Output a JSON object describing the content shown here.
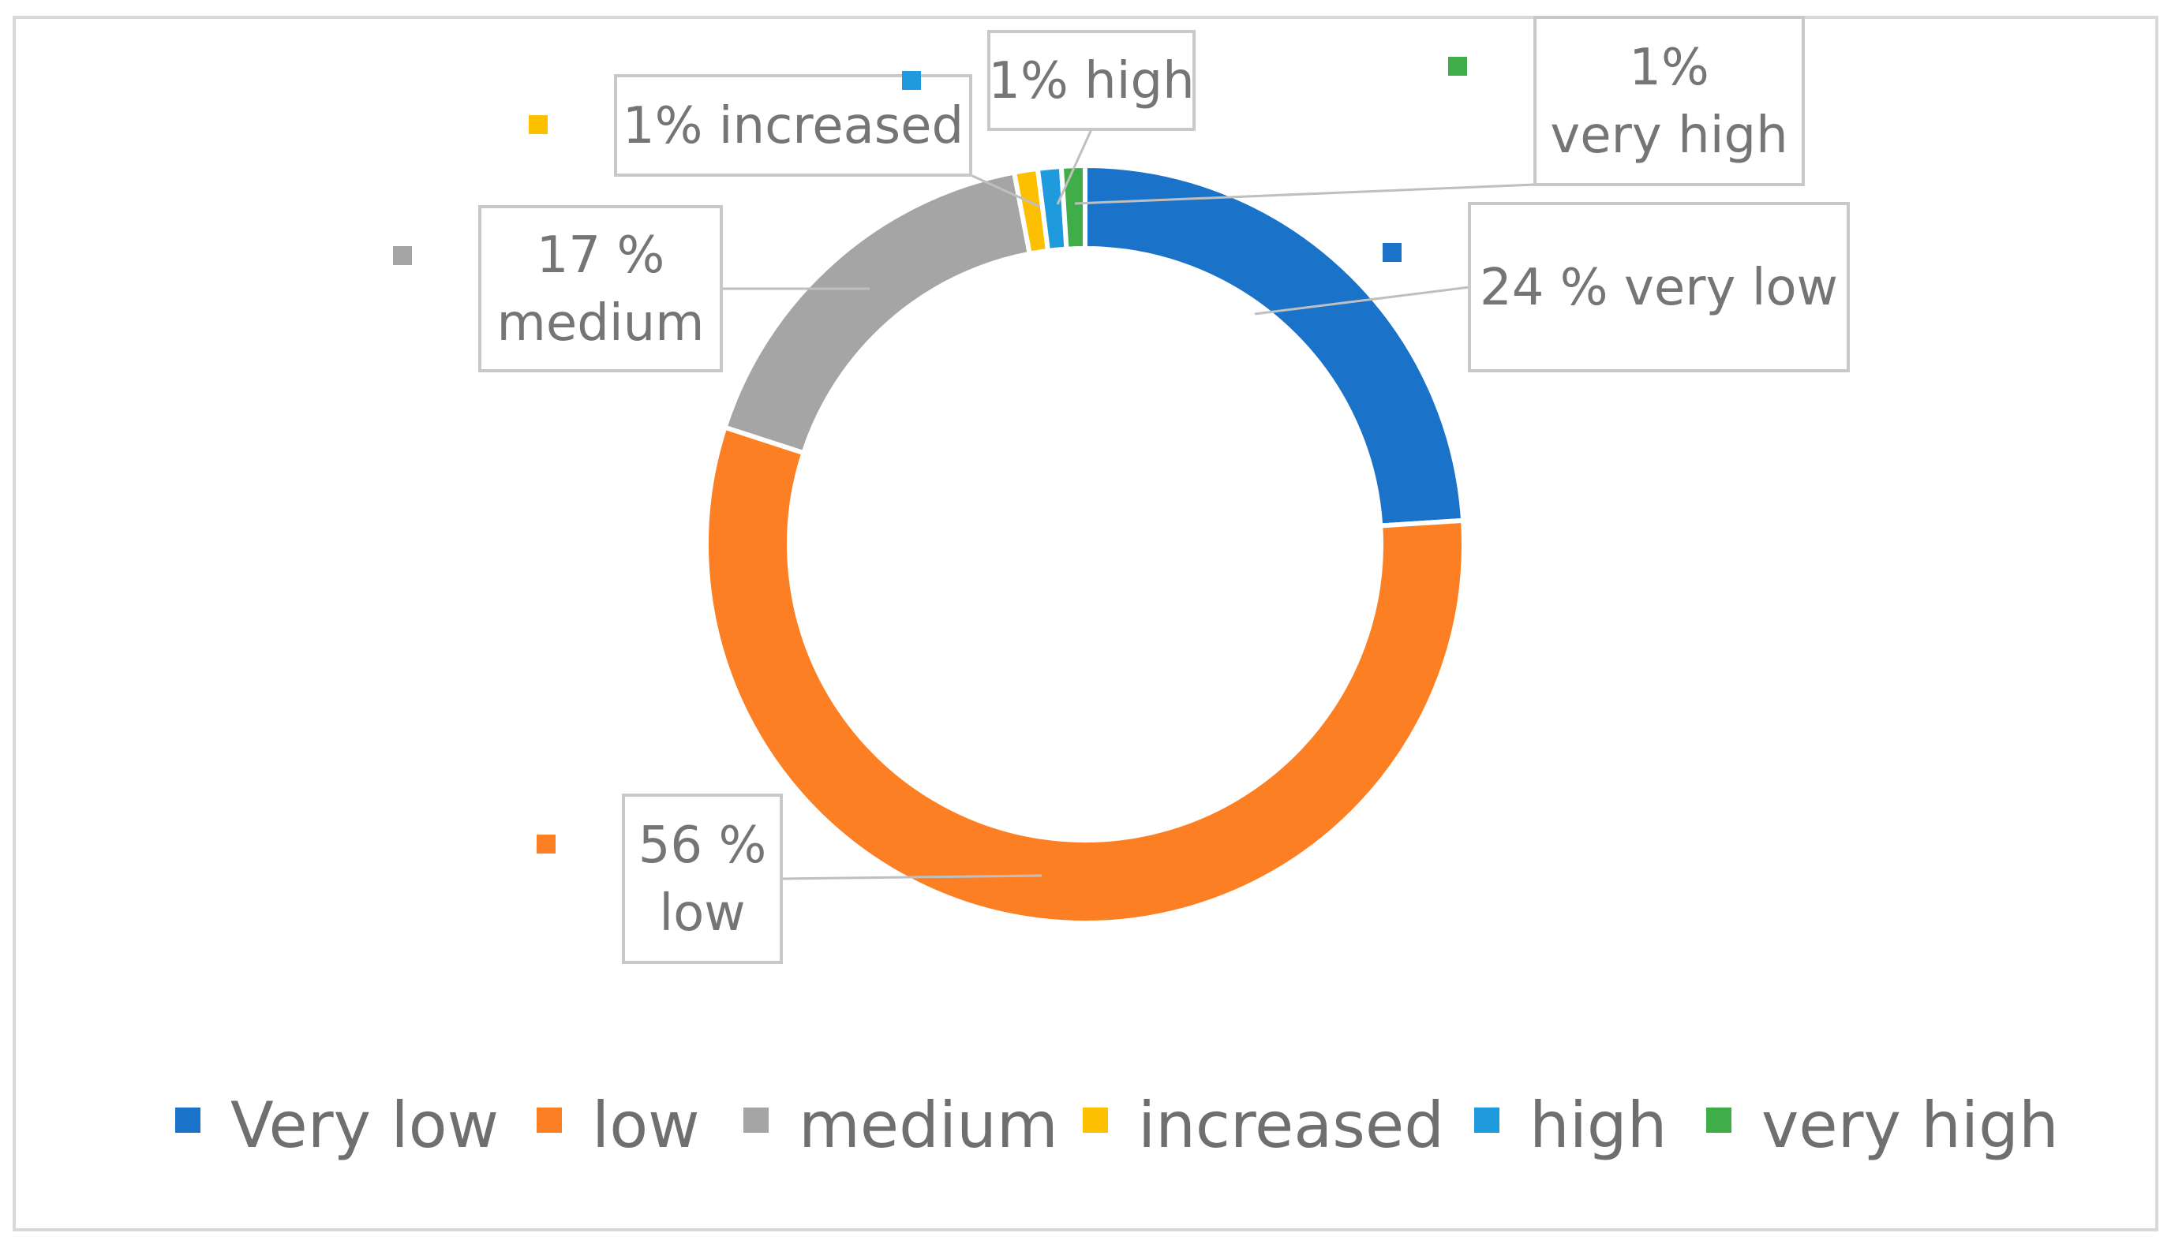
{
  "chart_data": {
    "type": "pie",
    "variant": "doughnut",
    "categories": [
      "Very low",
      "low",
      "medium",
      "increased",
      "high",
      "very high"
    ],
    "values": [
      24,
      56,
      17,
      1,
      1,
      1
    ],
    "unit": "%",
    "colors": [
      "#1b72c9",
      "#fd7f23",
      "#a5a5a5",
      "#fdc000",
      "#1f9bdd",
      "#3fae49"
    ],
    "data_labels": [
      [
        "24 % very low"
      ],
      [
        "56 %",
        "low"
      ],
      [
        "17 %",
        "medium"
      ],
      [
        "1% increased"
      ],
      [
        "1% high"
      ],
      [
        "1%",
        "very high"
      ]
    ],
    "legend": {
      "position": "bottom",
      "entries": [
        "Very low",
        "low",
        "medium",
        "increased",
        "high",
        "very high"
      ]
    },
    "title": ""
  }
}
